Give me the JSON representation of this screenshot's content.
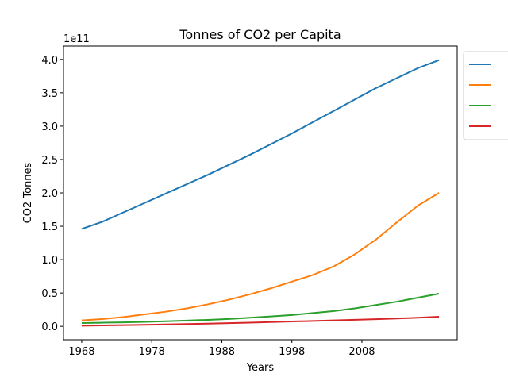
{
  "chart_data": {
    "type": "line",
    "title": "Tonnes of CO2 per Capita",
    "xlabel": "Years",
    "ylabel": "CO2 Tonnes",
    "y_offset_text": "1e11",
    "x_ticks": [
      1968,
      1978,
      1988,
      1998,
      2008
    ],
    "y_ticks": [
      "0.0",
      "0.5",
      "1.0",
      "1.5",
      "2.0",
      "2.5",
      "3.0",
      "3.5",
      "4.0"
    ],
    "xlim": [
      1965.4,
      2021.6
    ],
    "ylim": [
      -0.2,
      4.2
    ],
    "y_scale": 100000000000.0,
    "grid": false,
    "legend_position": "outside-top-right",
    "x": [
      1968,
      1971,
      1974,
      1977,
      1980,
      1983,
      1986,
      1989,
      1992,
      1995,
      1998,
      2001,
      2004,
      2007,
      2010,
      2013,
      2016,
      2019
    ],
    "series": [
      {
        "name": "",
        "color": "#1f77b4",
        "values": [
          1.46,
          1.57,
          1.71,
          1.85,
          1.99,
          2.13,
          2.27,
          2.42,
          2.57,
          2.73,
          2.89,
          3.06,
          3.23,
          3.4,
          3.57,
          3.72,
          3.87,
          3.99
        ]
      },
      {
        "name": "",
        "color": "#ff7f0e",
        "values": [
          0.09,
          0.11,
          0.14,
          0.18,
          0.22,
          0.27,
          0.33,
          0.4,
          0.48,
          0.57,
          0.67,
          0.77,
          0.9,
          1.08,
          1.3,
          1.56,
          1.81,
          2.0
        ]
      },
      {
        "name": "",
        "color": "#2ca02c",
        "values": [
          0.05,
          0.055,
          0.06,
          0.068,
          0.077,
          0.087,
          0.098,
          0.11,
          0.13,
          0.15,
          0.17,
          0.2,
          0.23,
          0.27,
          0.32,
          0.37,
          0.43,
          0.49
        ]
      },
      {
        "name": "",
        "color": "#d62728",
        "values": [
          0.01,
          0.014,
          0.018,
          0.023,
          0.029,
          0.035,
          0.041,
          0.048,
          0.056,
          0.064,
          0.073,
          0.081,
          0.09,
          0.099,
          0.108,
          0.118,
          0.13,
          0.145
        ]
      }
    ]
  }
}
